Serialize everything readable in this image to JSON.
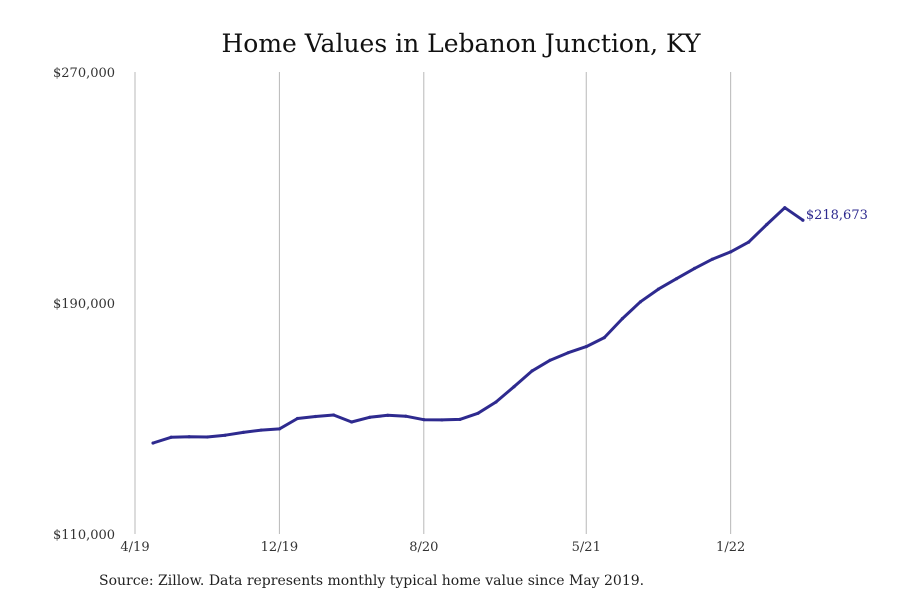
{
  "chart_data": {
    "type": "line",
    "title": "Home Values in Lebanon Junction, KY",
    "source_note": "Source: Zillow. Data represents monthly typical home value since May 2019.",
    "xlabel": "",
    "ylabel": "",
    "ylim": [
      110000,
      270000
    ],
    "y_ticks": [
      110000,
      190000,
      270000
    ],
    "y_tick_labels": [
      "$110,000",
      "$190,000",
      "$270,000"
    ],
    "x_ticks": [
      "2019-04",
      "2019-12",
      "2020-08",
      "2021-05",
      "2022-01"
    ],
    "x_tick_labels": [
      "4/19",
      "12/19",
      "8/20",
      "5/21",
      "1/22"
    ],
    "grid": "vertical",
    "line_color": "#2e2a8f",
    "end_label": "$218,673",
    "series": [
      {
        "x": [
          "2019-05",
          "2019-06",
          "2019-07",
          "2019-08",
          "2019-09",
          "2019-10",
          "2019-11",
          "2019-12",
          "2020-01",
          "2020-02",
          "2020-03",
          "2020-04",
          "2020-05",
          "2020-06",
          "2020-07",
          "2020-08",
          "2020-09",
          "2020-10",
          "2020-11",
          "2020-12",
          "2021-01",
          "2021-02",
          "2021-03",
          "2021-04",
          "2021-05",
          "2021-06",
          "2021-07",
          "2021-08",
          "2021-09",
          "2021-10",
          "2021-11",
          "2021-12",
          "2022-01",
          "2022-02",
          "2022-03",
          "2022-04",
          "2022-05"
        ],
        "values": [
          141500,
          143500,
          143700,
          143600,
          144200,
          145200,
          146000,
          146400,
          150000,
          150700,
          151200,
          148800,
          150400,
          151100,
          150800,
          149600,
          149500,
          149700,
          151800,
          155700,
          161000,
          166500,
          170200,
          172800,
          174900,
          178000,
          184600,
          190400,
          194800,
          198400,
          202000,
          205200,
          207700,
          211100,
          217200,
          223000,
          218673
        ]
      }
    ]
  }
}
